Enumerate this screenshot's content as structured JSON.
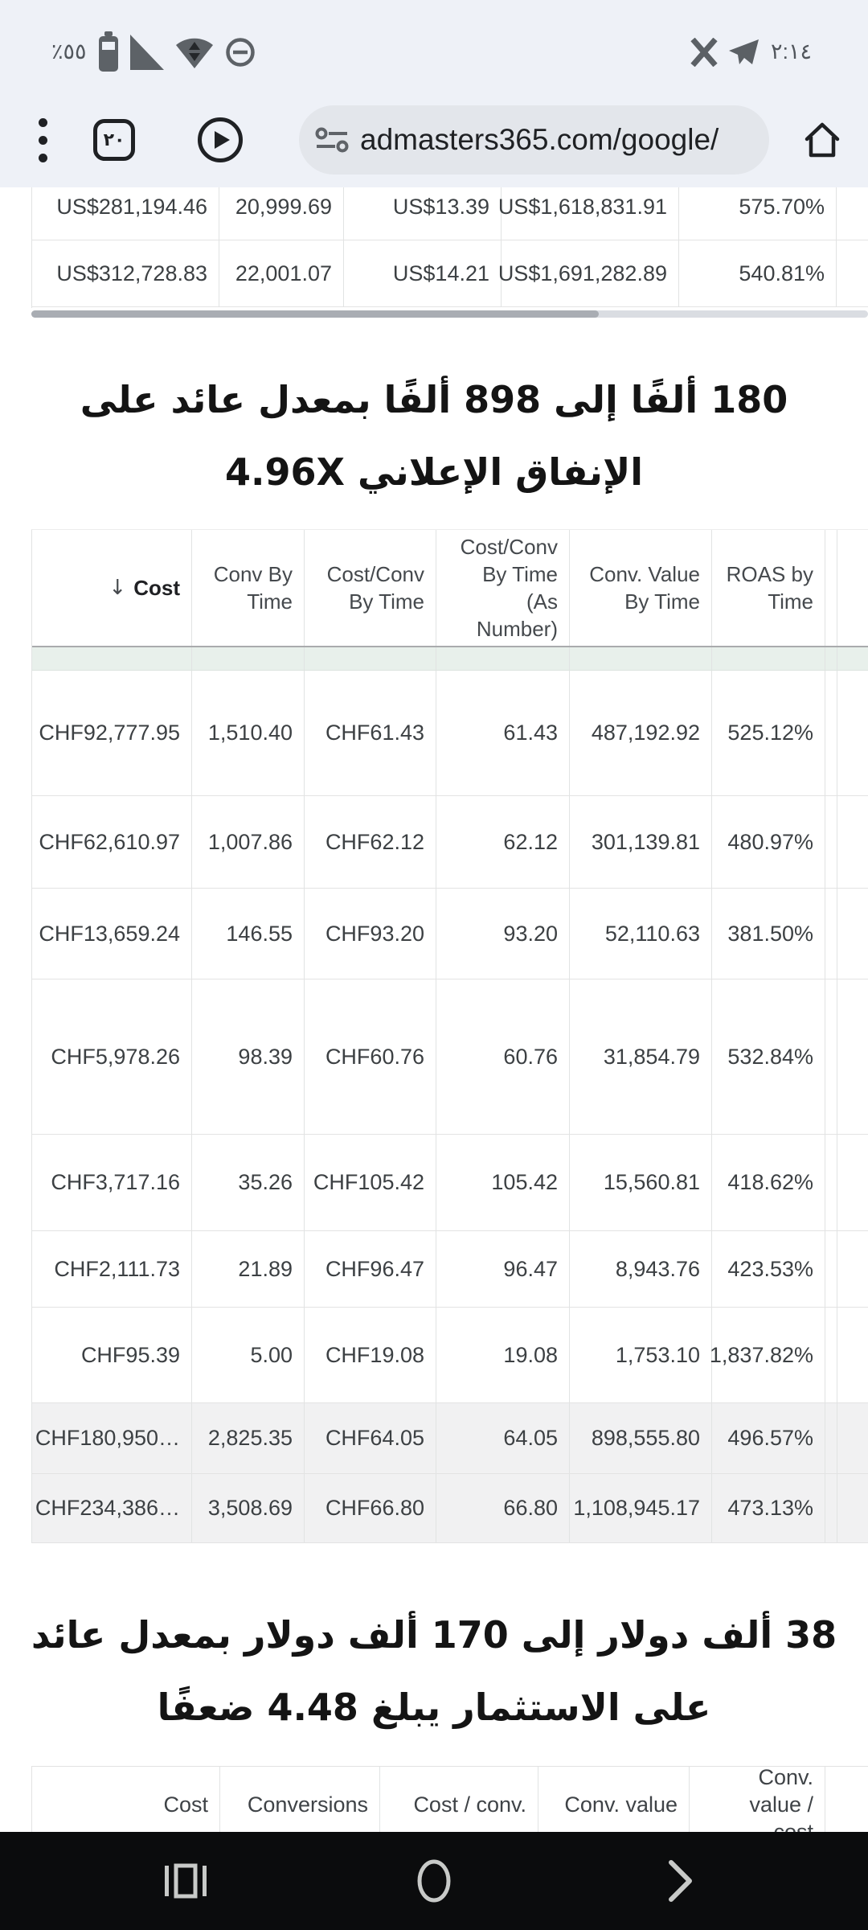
{
  "status_bar": {
    "battery_percent": "٪٥٥",
    "time": "٢:١٤"
  },
  "browser_toolbar": {
    "tab_count": "٢٠",
    "url": "admasters365.com/google/"
  },
  "top_table": {
    "rows": [
      [
        "US$281,194.46",
        "20,999.69",
        "US$13.39",
        "US$1,618,831.91",
        "575.70%"
      ],
      [
        "US$312,728.83",
        "22,001.07",
        "US$14.21",
        "US$1,691,282.89",
        "540.81%"
      ]
    ]
  },
  "heading_roas": "180 ألفًا إلى 898 ألفًا بمعدل عائد على الإنفاق الإعلاني 4.96X",
  "main_table": {
    "sort_icon": "↓",
    "headers": [
      "Cost",
      "Conv By Time",
      "Cost/Conv By Time",
      "Cost/Conv By Time (As Number)",
      "Conv. Value By Time",
      "ROAS by Time"
    ],
    "rows": [
      [
        "CHF92,777.95",
        "1,510.40",
        "CHF61.43",
        "61.43",
        "487,192.92",
        "525.12%"
      ],
      [
        "CHF62,610.97",
        "1,007.86",
        "CHF62.12",
        "62.12",
        "301,139.81",
        "480.97%"
      ],
      [
        "CHF13,659.24",
        "146.55",
        "CHF93.20",
        "93.20",
        "52,110.63",
        "381.50%"
      ],
      [
        "CHF5,978.26",
        "98.39",
        "CHF60.76",
        "60.76",
        "31,854.79",
        "532.84%"
      ],
      [
        "CHF3,717.16",
        "35.26",
        "CHF105.42",
        "105.42",
        "15,560.81",
        "418.62%"
      ],
      [
        "CHF2,111.73",
        "21.89",
        "CHF96.47",
        "96.47",
        "8,943.76",
        "423.53%"
      ],
      [
        "CHF95.39",
        "5.00",
        "CHF19.08",
        "19.08",
        "1,753.10",
        "1,837.82%"
      ]
    ],
    "summary_rows": [
      [
        "CHF180,950…",
        "2,825.35",
        "CHF64.05",
        "64.05",
        "898,555.80",
        "496.57%"
      ],
      [
        "CHF234,386…",
        "3,508.69",
        "CHF66.80",
        "66.80",
        "1,108,945.17",
        "473.13%"
      ]
    ]
  },
  "heading_roi": "38 ألف دولار إلى 170 ألف دولار بمعدل عائد على الاستثمار يبلغ 4.48 ضعفًا",
  "bottom_table": {
    "headers": [
      "Cost",
      "Conversions",
      "Cost / conv.",
      "Conv. value",
      "Conv. value / cost"
    ]
  }
}
